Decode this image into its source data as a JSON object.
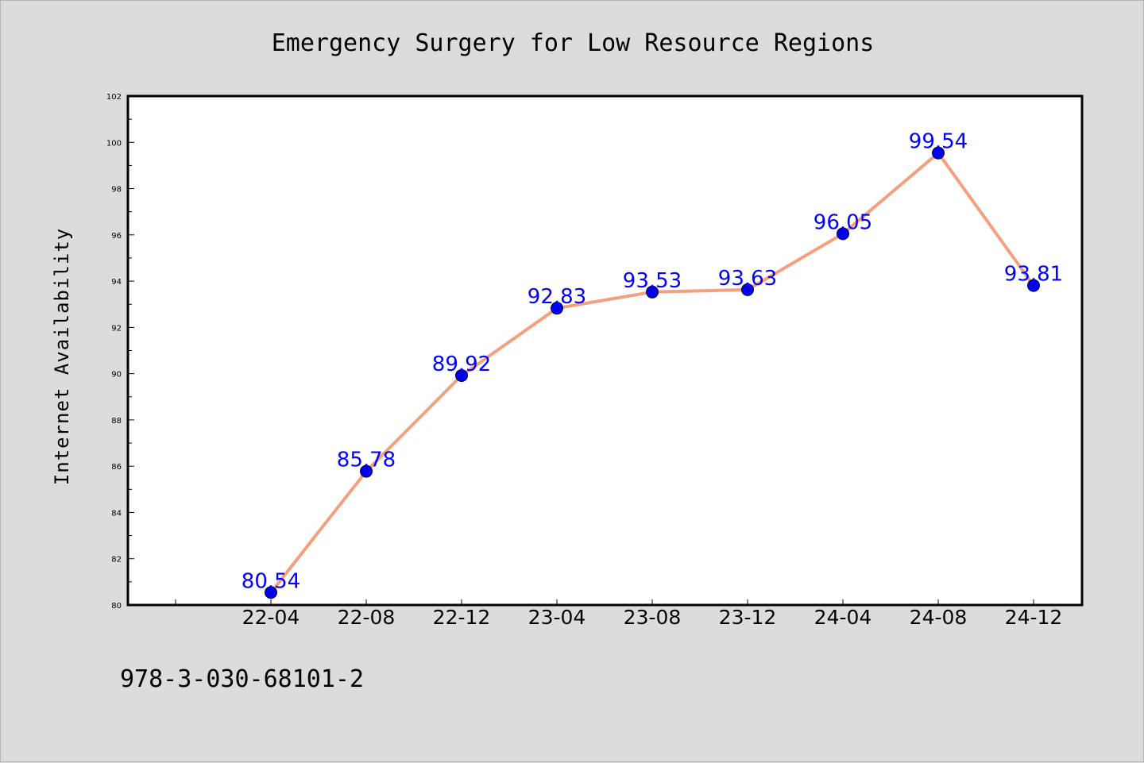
{
  "chart_data": {
    "type": "line",
    "title": "Emergency Surgery for Low Resource Regions",
    "xlabel": "",
    "ylabel": "Internet Availability",
    "categories": [
      "22-04",
      "22-08",
      "22-12",
      "23-04",
      "23-08",
      "23-12",
      "24-04",
      "24-08",
      "24-12"
    ],
    "values": [
      80.54,
      85.78,
      89.92,
      92.83,
      93.53,
      93.63,
      96.05,
      99.54,
      93.81
    ],
    "data_labels": [
      "80.54",
      "85.78",
      "89.92",
      "92.83",
      "93.53",
      "93.63",
      "96.05",
      "99.54",
      "93.81"
    ],
    "ylim": [
      80,
      102
    ],
    "yticks": [
      "80",
      "82",
      "84",
      "86",
      "88",
      "90",
      "92",
      "94",
      "96",
      "98",
      "100",
      "102"
    ],
    "grid": false,
    "line_color": "#f4a07e",
    "marker_color": "#0000ee",
    "label_color": "#0000ff"
  },
  "footer": {
    "isbn": "978-3-030-68101-2"
  }
}
